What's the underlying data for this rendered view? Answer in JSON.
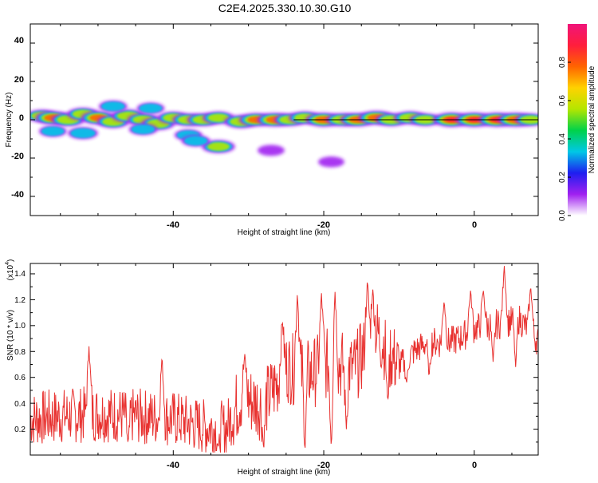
{
  "title": "C2E4.2025.330.10.30.G10",
  "chart_data": [
    {
      "type": "heatmap",
      "xlabel": "Height of straight line (km)",
      "ylabel": "Frequency (Hz)",
      "xlim": [
        -59,
        8.5
      ],
      "ylim": [
        -50,
        50
      ],
      "xticks": [
        "-40",
        "-20",
        "0"
      ],
      "yticks": [
        "40",
        "20",
        "0",
        "-20",
        "-40"
      ],
      "colorbar": {
        "label": "Normalized spectral amplitude",
        "range": [
          0,
          1
        ],
        "ticks": [
          "0.0",
          "0.2",
          "0.4",
          "0.6",
          "0.8"
        ],
        "colors": [
          "#ffffff",
          "#a020f0",
          "#1e1ef0",
          "#00c8e6",
          "#00d24a",
          "#b4e600",
          "#ffd200",
          "#ff6400",
          "#ff1e3c",
          "#f0147a"
        ]
      },
      "ridge_frequency_hz": 0,
      "blobs": [
        [
          -57.5,
          2,
          0.55
        ],
        [
          -56,
          1,
          0.8
        ],
        [
          -54,
          0,
          0.7
        ],
        [
          -52,
          3,
          0.6
        ],
        [
          -50,
          1,
          0.75
        ],
        [
          -48,
          -1,
          0.65
        ],
        [
          -46,
          2,
          0.7
        ],
        [
          -44,
          0,
          0.6
        ],
        [
          -42,
          -2,
          0.7
        ],
        [
          -40,
          1,
          0.55
        ],
        [
          -38,
          0,
          0.6
        ],
        [
          -36,
          0,
          0.65
        ],
        [
          -34,
          1,
          0.6
        ],
        [
          -31,
          -1,
          0.7
        ],
        [
          -29,
          0,
          0.75
        ],
        [
          -26.5,
          0,
          0.85
        ],
        [
          -24.5,
          0,
          0.6
        ],
        [
          -22.5,
          1,
          0.65
        ],
        [
          -20,
          0,
          0.9
        ],
        [
          -17.5,
          0,
          0.7
        ],
        [
          -15.5,
          0,
          0.8
        ],
        [
          -13,
          1,
          0.9
        ],
        [
          -11,
          0,
          0.65
        ],
        [
          -8.5,
          1,
          0.7
        ],
        [
          -6.5,
          0,
          0.6
        ],
        [
          -3,
          0,
          1.0
        ],
        [
          0,
          0,
          1.0
        ],
        [
          3,
          0,
          0.95
        ],
        [
          5.5,
          0,
          0.9
        ],
        [
          7.5,
          0,
          0.6
        ],
        [
          -52,
          -7,
          0.5
        ],
        [
          -44,
          -5,
          0.4
        ],
        [
          -38,
          -8,
          0.35
        ],
        [
          -34,
          -14,
          0.7
        ],
        [
          -37,
          -11,
          0.4
        ],
        [
          -27,
          -16,
          0.3
        ],
        [
          -19,
          -22,
          0.25
        ],
        [
          -56,
          -6,
          0.35
        ],
        [
          -48,
          7,
          0.4
        ],
        [
          -43,
          6,
          0.35
        ]
      ]
    },
    {
      "type": "line",
      "xlabel": "Height of straight line (km)",
      "ylabel": "SNR (10 * v/v)",
      "y_scale_label": "(x10",
      "y_scale_exp": "4",
      "y_scale_close": ")",
      "xlim": [
        -59,
        8.5
      ],
      "ylim": [
        0,
        1.48
      ],
      "xticks": [
        "-40",
        "-20",
        "0"
      ],
      "yticks": [
        "0.2",
        "0.4",
        "0.6",
        "0.8",
        "1.0",
        "1.2",
        "1.4"
      ],
      "color": "#e8312f",
      "series": [
        {
          "name": "SNR",
          "x": [
            -59,
            -55,
            -50,
            -45,
            -40,
            -36,
            -33,
            -31,
            -28,
            -25,
            -22,
            -19,
            -16,
            -13,
            -10,
            -8,
            -6,
            -4,
            -2,
            0,
            2,
            4,
            6,
            8.5
          ],
          "y": [
            0.28,
            0.3,
            0.32,
            0.3,
            0.28,
            0.22,
            0.2,
            0.45,
            0.38,
            0.68,
            0.62,
            0.72,
            0.66,
            0.95,
            0.68,
            0.8,
            0.88,
            0.86,
            0.9,
            0.98,
            1.0,
            1.02,
            1.05,
            0.88
          ]
        }
      ],
      "peaks": [
        [
          -51.2,
          0.84
        ],
        [
          -41.5,
          0.76
        ],
        [
          -30.5,
          0.78
        ],
        [
          -25.5,
          1.05
        ],
        [
          -23.5,
          1.27
        ],
        [
          -20.3,
          1.25
        ],
        [
          -18.5,
          1.26
        ],
        [
          -14.2,
          1.35
        ],
        [
          -13.5,
          1.29
        ],
        [
          -4,
          1.2
        ],
        [
          -0.5,
          1.27
        ],
        [
          1.2,
          1.28
        ],
        [
          4,
          1.46
        ],
        [
          7.5,
          1.31
        ]
      ],
      "troughs": [
        [
          -46,
          0.08
        ],
        [
          -34,
          0.05
        ],
        [
          -28,
          0.05
        ],
        [
          -22.5,
          0.02
        ],
        [
          -19,
          0.05
        ],
        [
          -17,
          0.2
        ],
        [
          -11.5,
          0.4
        ],
        [
          -9,
          0.55
        ],
        [
          -6,
          0.6
        ],
        [
          2.5,
          0.72
        ],
        [
          5.5,
          0.68
        ]
      ]
    }
  ]
}
